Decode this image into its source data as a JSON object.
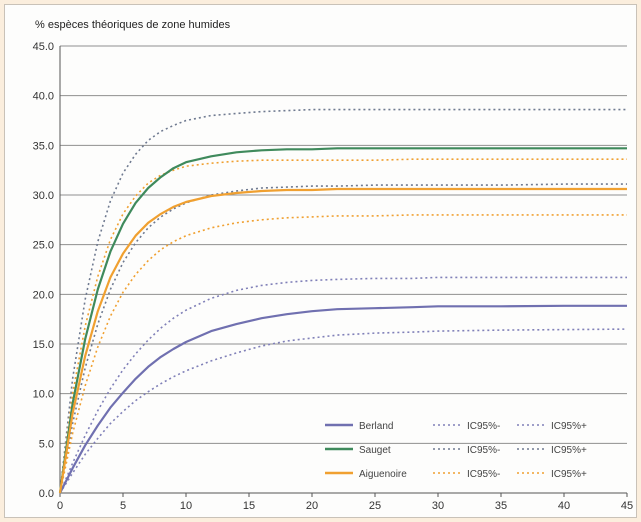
{
  "chart_data": {
    "type": "line",
    "title": "",
    "ylabel": "% espèces théoriques de zone humides",
    "xlabel": "",
    "xlim": [
      0,
      45
    ],
    "ylim": [
      0,
      45
    ],
    "x_ticks": [
      "0",
      "5",
      "10",
      "15",
      "20",
      "25",
      "30",
      "35",
      "40",
      "45"
    ],
    "y_ticks": [
      "0.0",
      "5.0",
      "10.0",
      "15.0",
      "20.0",
      "25.0",
      "30.0",
      "35.0",
      "40.0",
      "45.0"
    ],
    "grid": "horizontal",
    "legend_position": "bottom-right",
    "x": [
      0,
      1,
      2,
      3,
      4,
      5,
      6,
      7,
      8,
      9,
      10,
      12,
      14,
      16,
      18,
      20,
      22,
      25,
      28,
      30,
      35,
      40,
      45
    ],
    "series": [
      {
        "name": "Berland",
        "color": "#7070b0",
        "style": "solid",
        "values": [
          0,
          2.5,
          4.8,
          6.8,
          8.6,
          10.1,
          11.5,
          12.7,
          13.7,
          14.5,
          15.2,
          16.3,
          17.0,
          17.6,
          18.0,
          18.3,
          18.5,
          18.6,
          18.7,
          18.8,
          18.8,
          18.85,
          18.85
        ]
      },
      {
        "name": "IC95%-",
        "color": "#8080b8",
        "style": "dotted",
        "values": [
          0,
          2.0,
          3.9,
          5.5,
          7.0,
          8.2,
          9.3,
          10.2,
          11.0,
          11.7,
          12.3,
          13.3,
          14.1,
          14.8,
          15.3,
          15.6,
          15.9,
          16.1,
          16.2,
          16.3,
          16.4,
          16.45,
          16.5
        ]
      },
      {
        "name": "IC95%+",
        "color": "#8080b8",
        "style": "dotted",
        "values": [
          0,
          3.0,
          5.8,
          8.3,
          10.5,
          12.4,
          14.0,
          15.4,
          16.6,
          17.6,
          18.4,
          19.6,
          20.4,
          20.9,
          21.2,
          21.4,
          21.5,
          21.6,
          21.6,
          21.7,
          21.7,
          21.7,
          21.7
        ]
      },
      {
        "name": "Sauget",
        "color": "#3f8a5c",
        "style": "solid",
        "values": [
          0,
          9.0,
          15.5,
          20.5,
          24.3,
          27.1,
          29.2,
          30.7,
          31.8,
          32.7,
          33.3,
          33.9,
          34.3,
          34.5,
          34.6,
          34.6,
          34.7,
          34.7,
          34.7,
          34.7,
          34.7,
          34.7,
          34.7
        ]
      },
      {
        "name": "IC95%-",
        "color": "#6f7a90",
        "style": "dotted",
        "values": [
          0,
          7.0,
          12.6,
          17.0,
          20.5,
          23.2,
          25.2,
          26.7,
          27.8,
          28.6,
          29.2,
          30.0,
          30.4,
          30.7,
          30.8,
          30.9,
          30.9,
          31.0,
          31.0,
          31.0,
          31.0,
          31.1,
          31.1
        ]
      },
      {
        "name": "IC95%+",
        "color": "#6f7a90",
        "style": "dotted",
        "values": [
          0,
          11.5,
          19.5,
          25.3,
          29.4,
          32.2,
          34.1,
          35.5,
          36.4,
          37.0,
          37.5,
          38.0,
          38.2,
          38.4,
          38.5,
          38.6,
          38.6,
          38.6,
          38.6,
          38.6,
          38.6,
          38.6,
          38.6
        ]
      },
      {
        "name": "Aiguenoire",
        "color": "#f0a030",
        "style": "solid",
        "values": [
          0,
          8.0,
          13.8,
          18.3,
          21.7,
          24.1,
          25.9,
          27.2,
          28.1,
          28.8,
          29.3,
          29.9,
          30.2,
          30.4,
          30.5,
          30.5,
          30.6,
          30.6,
          30.6,
          30.6,
          30.6,
          30.6,
          30.6
        ]
      },
      {
        "name": "IC95%-",
        "color": "#f0a030",
        "style": "dotted",
        "values": [
          0,
          6.0,
          10.8,
          14.7,
          17.8,
          20.2,
          22.0,
          23.4,
          24.5,
          25.3,
          25.9,
          26.7,
          27.2,
          27.5,
          27.7,
          27.8,
          27.9,
          27.9,
          28.0,
          28.0,
          28.0,
          28.0,
          28.0
        ]
      },
      {
        "name": "IC95%+",
        "color": "#f0a030",
        "style": "dotted",
        "values": [
          0,
          10.0,
          16.8,
          21.8,
          25.5,
          28.1,
          29.9,
          31.2,
          32.0,
          32.5,
          32.9,
          33.2,
          33.4,
          33.5,
          33.5,
          33.5,
          33.5,
          33.5,
          33.6,
          33.6,
          33.6,
          33.6,
          33.6
        ]
      }
    ]
  }
}
